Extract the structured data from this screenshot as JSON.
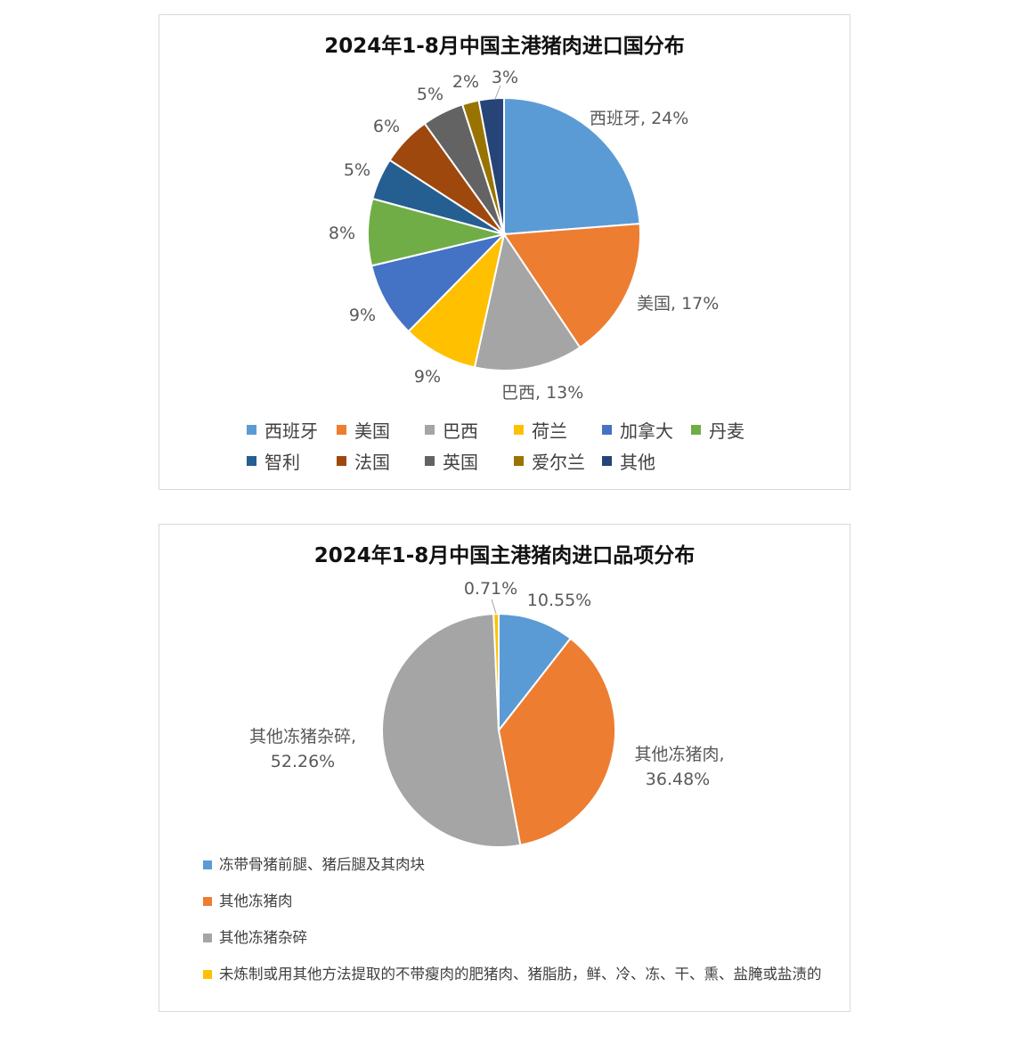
{
  "chart_data": [
    {
      "type": "pie",
      "title": "2024年1-8月中国主港猪肉进口国分布",
      "categories": [
        "西班牙",
        "美国",
        "巴西",
        "荷兰",
        "加拿大",
        "丹麦",
        "智利",
        "法国",
        "英国",
        "爱尔兰",
        "其他"
      ],
      "values": [
        24,
        17,
        13,
        9,
        9,
        8,
        5,
        6,
        5,
        2,
        3
      ],
      "data_labels": [
        "西班牙, 24%",
        "美国, 17%",
        "巴西, 13%",
        "9%",
        "9%",
        "8%",
        "5%",
        "6%",
        "5%",
        "2%",
        "3%"
      ],
      "colors": [
        "#5b9bd5",
        "#ed7d31",
        "#a5a5a5",
        "#ffc000",
        "#4472c4",
        "#70ad47",
        "#255e91",
        "#9e480e",
        "#636363",
        "#997300",
        "#264478"
      ],
      "legend": "bottom",
      "unit": "%"
    },
    {
      "type": "pie",
      "title": "2024年1-8月中国主港猪肉进口品项分布",
      "categories": [
        "冻带骨猪前腿、猪后腿及其肉块",
        "其他冻猪肉",
        "其他冻猪杂碎",
        "未炼制或用其他方法提取的不带瘦肉的肥猪肉、猪脂肪，鲜、冷、冻、干、熏、盐腌或盐渍的"
      ],
      "values": [
        10.55,
        36.48,
        52.26,
        0.71
      ],
      "data_labels": [
        [
          "10.55%"
        ],
        [
          "其他冻猪肉,",
          "36.48%"
        ],
        [
          "其他冻猪杂碎,",
          "52.26%"
        ],
        [
          "0.71%"
        ]
      ],
      "colors": [
        "#5b9bd5",
        "#ed7d31",
        "#a5a5a5",
        "#ffc000"
      ],
      "legend": "bottom",
      "unit": "%"
    }
  ]
}
